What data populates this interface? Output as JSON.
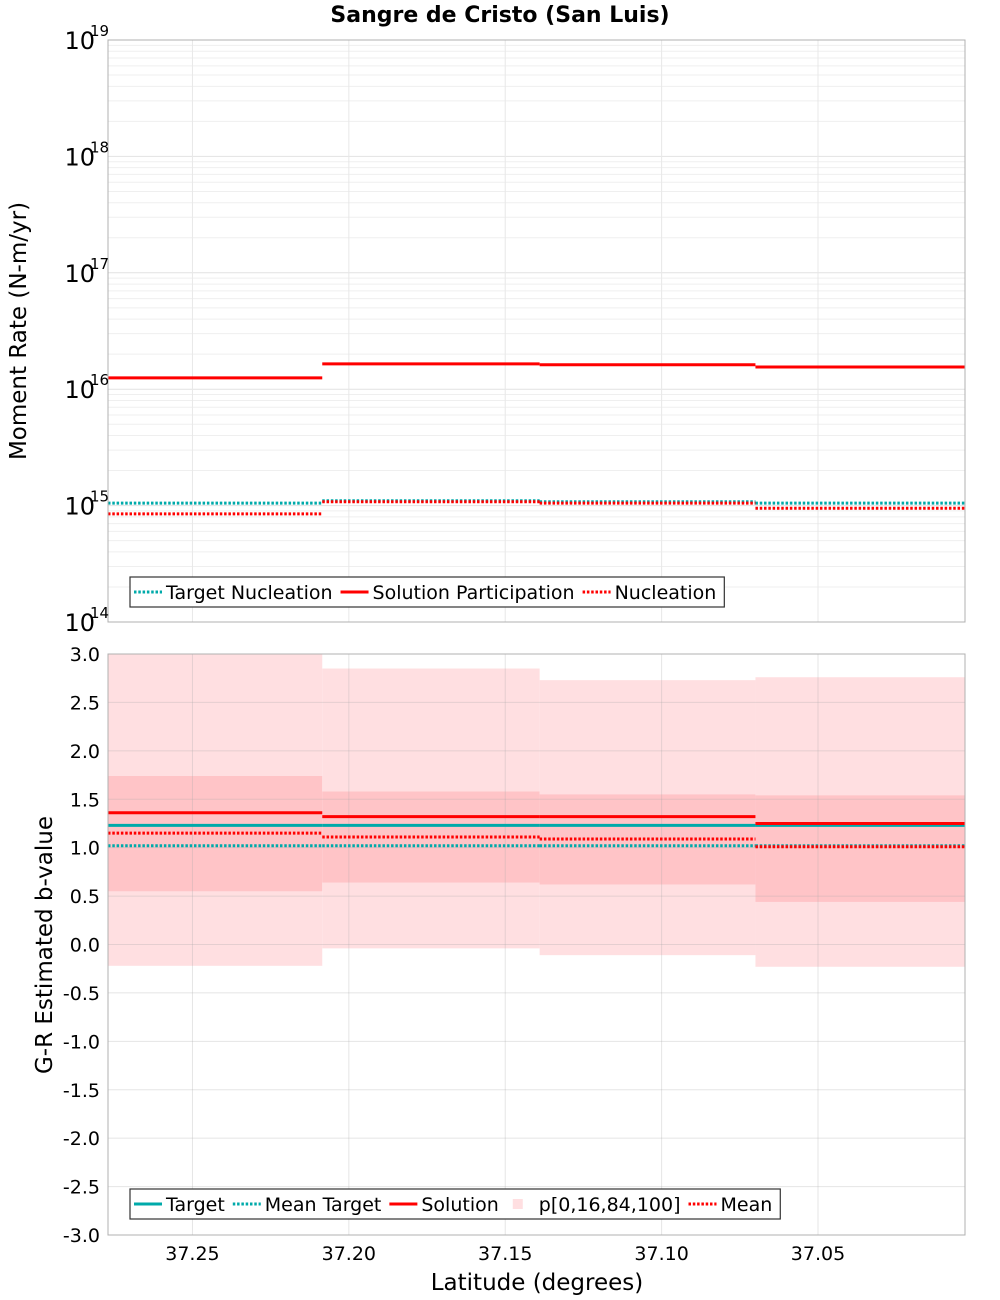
{
  "chart_data": [
    {
      "type": "line",
      "title": "Sangre de Cristo (San Luis)",
      "xlabel": "",
      "ylabel": "Moment Rate (N-m/yr)",
      "yscale": "log",
      "ylim": [
        100000000000000.0,
        1e+19
      ],
      "xlim": [
        37.277,
        37.003
      ],
      "x_reversed": true,
      "grid": true,
      "legend_position": "bottom-left",
      "x_edges": [
        37.277,
        37.2085,
        37.139,
        37.07,
        37.003
      ],
      "y_ticks": [
        {
          "base": "10",
          "exp": "14"
        },
        {
          "base": "10",
          "exp": "15"
        },
        {
          "base": "10",
          "exp": "16"
        },
        {
          "base": "10",
          "exp": "17"
        },
        {
          "base": "10",
          "exp": "18"
        },
        {
          "base": "10",
          "exp": "19"
        }
      ],
      "series": [
        {
          "name": "Target Nucleation",
          "color": "#00aaaa",
          "style": "dotted",
          "values": [
            1050000000000000.0,
            1100000000000000.0,
            1080000000000000.0,
            1050000000000000.0
          ]
        },
        {
          "name": "Solution Participation",
          "color": "#ff0000",
          "style": "solid",
          "values": [
            1.25e+16,
            1.65e+16,
            1.62e+16,
            1.55e+16
          ]
        },
        {
          "name": "Nucleation",
          "color": "#ff0000",
          "style": "dotted",
          "values": [
            850000000000000.0,
            1080000000000000.0,
            1050000000000000.0,
            950000000000000.0
          ]
        }
      ]
    },
    {
      "type": "line",
      "title": "",
      "xlabel": "Latitude (degrees)",
      "ylabel": "G-R Estimated b-value",
      "ylim": [
        -3.0,
        3.0
      ],
      "xlim": [
        37.277,
        37.003
      ],
      "x_reversed": true,
      "grid": true,
      "legend_position": "bottom-left",
      "x_edges": [
        37.277,
        37.2085,
        37.139,
        37.07,
        37.003
      ],
      "x_ticks": [
        "37.25",
        "37.20",
        "37.15",
        "37.10",
        "37.05"
      ],
      "x_tick_values": [
        37.25,
        37.2,
        37.15,
        37.1,
        37.05
      ],
      "y_ticks": [
        "3.0",
        "2.5",
        "2.0",
        "1.5",
        "1.0",
        "0.5",
        "0.0",
        "-0.5",
        "-1.0",
        "-1.5",
        "-2.0",
        "-2.5",
        "-3.0"
      ],
      "y_tick_values": [
        3.0,
        2.5,
        2.0,
        1.5,
        1.0,
        0.5,
        0.0,
        -0.5,
        -1.0,
        -1.5,
        -2.0,
        -2.5,
        -3.0
      ],
      "band_outer": {
        "p0": [
          -0.22,
          -0.04,
          -0.11,
          -0.23
        ],
        "p100": [
          3.0,
          2.85,
          2.73,
          2.76
        ],
        "color": "#ffdfe1"
      },
      "band_inner": {
        "p16": [
          0.55,
          0.64,
          0.62,
          0.44
        ],
        "p84": [
          1.74,
          1.58,
          1.55,
          1.54
        ],
        "color": "#ffc4c7"
      },
      "series": [
        {
          "name": "Target",
          "color": "#00aaaa",
          "style": "solid",
          "values": [
            1.23,
            1.23,
            1.23,
            1.23
          ]
        },
        {
          "name": "Mean Target",
          "color": "#00aaaa",
          "style": "dotted",
          "values": [
            1.02,
            1.02,
            1.02,
            1.02
          ]
        },
        {
          "name": "Solution",
          "color": "#ff0000",
          "style": "solid",
          "values": [
            1.36,
            1.32,
            1.32,
            1.25
          ]
        },
        {
          "name": "p[0,16,84,100]",
          "color": "#ffdfe1",
          "style": "band",
          "values": []
        },
        {
          "name": "Mean",
          "color": "#ff0000",
          "style": "dotted",
          "values": [
            1.15,
            1.11,
            1.09,
            1.01
          ]
        }
      ]
    }
  ]
}
